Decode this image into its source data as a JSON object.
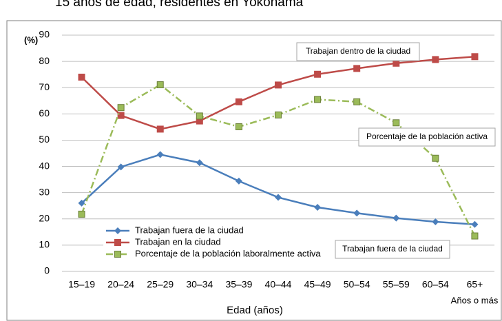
{
  "chart_data": {
    "type": "line",
    "title": "15 años de edad, residentes en Yokohama",
    "y_unit_label": "(%)",
    "x_label": "Edad (años)",
    "last_category_note": "Años o más",
    "categories": [
      "15–19",
      "20–24",
      "25–29",
      "30–34",
      "35–39",
      "40–44",
      "45–49",
      "50–54",
      "55–59",
      "60–54",
      "65+"
    ],
    "series": [
      {
        "name": "Trabajan fuera de la ciudad",
        "color": "#4a7ebb",
        "marker": "diamond",
        "dash": "solid",
        "values": [
          26,
          39.8,
          44.5,
          41.4,
          34.4,
          28.2,
          24.4,
          22.2,
          20.3,
          18.9,
          17.9
        ]
      },
      {
        "name": "Trabajan en la ciudad",
        "color": "#be4b48",
        "marker": "square",
        "dash": "solid",
        "values": [
          74,
          59.4,
          54.2,
          57.3,
          64.6,
          71,
          75.1,
          77.3,
          79.3,
          80.7,
          81.8
        ]
      },
      {
        "name": "Porcentaje de la población laboralmente activa",
        "color": "#9bbb59",
        "marker": "square",
        "dash": "dashdot",
        "values": [
          21.8,
          62.4,
          71.1,
          59.2,
          55.1,
          59.6,
          65.5,
          64.6,
          56.6,
          43.1,
          13.5
        ]
      }
    ],
    "annotations": [
      "Trabajan dentro de la ciudad",
      "Porcentaje de la población activa",
      "Trabajan fuera de la ciudad"
    ],
    "ylim": [
      0,
      90
    ],
    "yticks": [
      0,
      10,
      20,
      30,
      40,
      50,
      60,
      70,
      80,
      90
    ],
    "grid": true
  }
}
